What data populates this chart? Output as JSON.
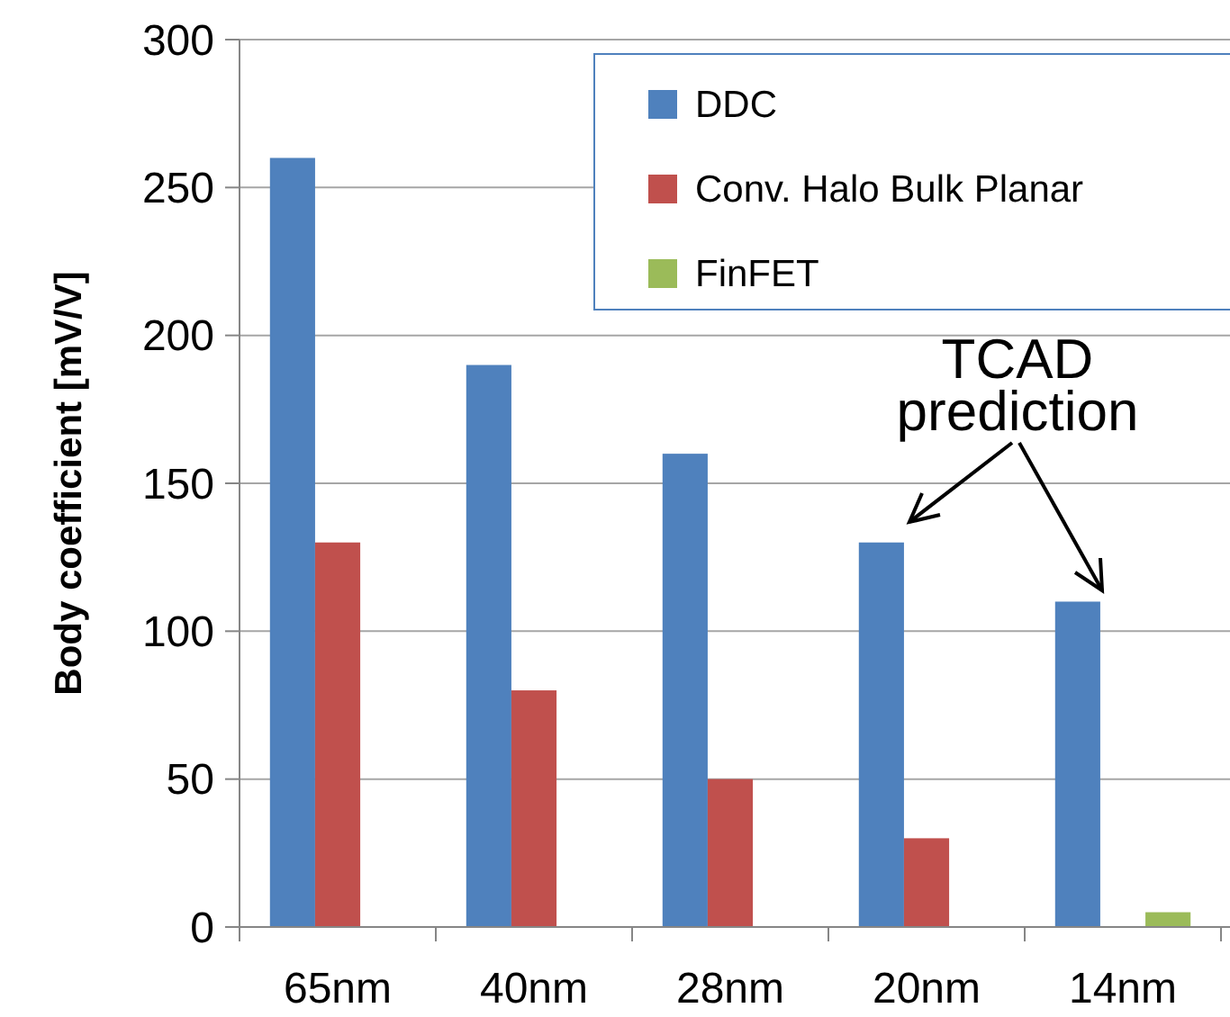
{
  "chart_data": {
    "type": "bar",
    "ylabel": "Body coefficient [mV/V]",
    "categories": [
      "65nm",
      "40nm",
      "28nm",
      "20nm",
      "14nm"
    ],
    "series": [
      {
        "name": "DDC",
        "color": "#4f81bd",
        "values": [
          260,
          190,
          160,
          130,
          110
        ]
      },
      {
        "name": "Conv. Halo Bulk Planar",
        "color": "#c0504d",
        "values": [
          130,
          80,
          50,
          30,
          null
        ]
      },
      {
        "name": "FinFET",
        "color": "#9bbb59",
        "values": [
          null,
          null,
          null,
          null,
          5
        ]
      }
    ],
    "ylim": [
      0,
      300
    ],
    "yticks": [
      0,
      50,
      100,
      150,
      200,
      250,
      300
    ],
    "grid": "y",
    "legend": "top right",
    "annotations": [
      "TCAD prediction"
    ]
  }
}
